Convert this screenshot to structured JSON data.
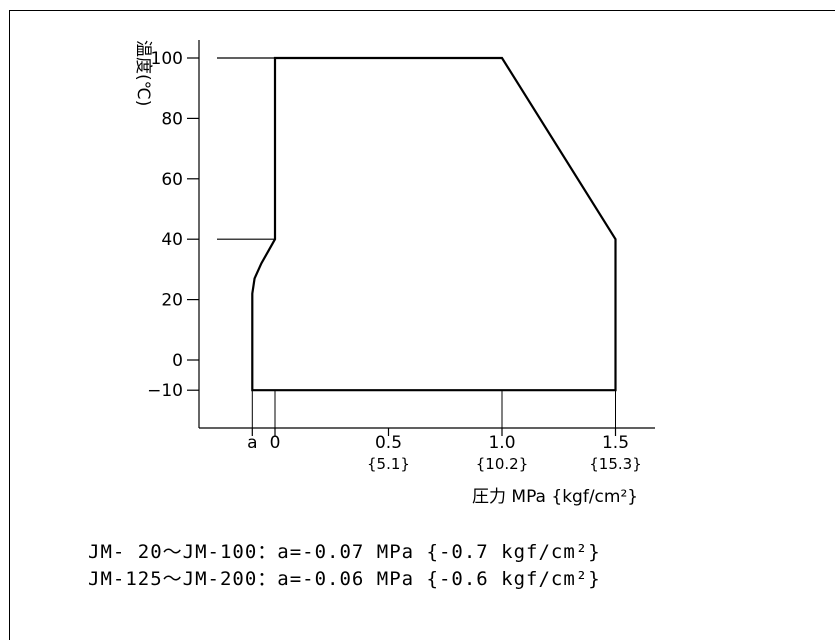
{
  "chart_data": {
    "type": "area",
    "title": "",
    "ylabel": "温度(℃)",
    "xlabel": "圧力 MPa {kgf/cm²}",
    "xlim": [
      -0.2,
      1.65
    ],
    "ylim": [
      -22,
      105
    ],
    "y_ticks": [
      {
        "value": 100,
        "label": "100"
      },
      {
        "value": 80,
        "label": "80"
      },
      {
        "value": 60,
        "label": "60"
      },
      {
        "value": 40,
        "label": "40"
      },
      {
        "value": 20,
        "label": "20"
      },
      {
        "value": 0,
        "label": "0"
      },
      {
        "value": -10,
        "label": "−10"
      }
    ],
    "x_ticks": [
      {
        "value": -0.1,
        "label": "a",
        "sub": ""
      },
      {
        "value": 0,
        "label": "0",
        "sub": ""
      },
      {
        "value": 0.5,
        "label": "0.5",
        "sub": "{5.1}"
      },
      {
        "value": 1.0,
        "label": "1.0",
        "sub": "{10.2}"
      },
      {
        "value": 1.5,
        "label": "1.5",
        "sub": "{15.3}"
      }
    ],
    "x_drop_ticks": [
      -0.1,
      0,
      1.0,
      1.5
    ],
    "boundary": [
      {
        "x": -0.1,
        "y": -10
      },
      {
        "x": -0.1,
        "y": 22
      },
      {
        "x": -0.09,
        "y": 27
      },
      {
        "x": -0.06,
        "y": 32
      },
      {
        "x": -0.03,
        "y": 36
      },
      {
        "x": 0,
        "y": 40
      },
      {
        "x": 0,
        "y": 100
      },
      {
        "x": 1.0,
        "y": 100
      },
      {
        "x": 1.5,
        "y": 40
      },
      {
        "x": 1.5,
        "y": -10
      }
    ],
    "guide_lines": [
      {
        "y": 100,
        "x_to": 0
      },
      {
        "y": 40,
        "x_to": 0
      }
    ],
    "notes": [
      "JM- 20～JM-100：a=-0.07 MPa {-0.7 kgf/cm²}",
      "JM-125～JM-200：a=-0.06 MPa {-0.6 kgf/cm²}"
    ]
  }
}
